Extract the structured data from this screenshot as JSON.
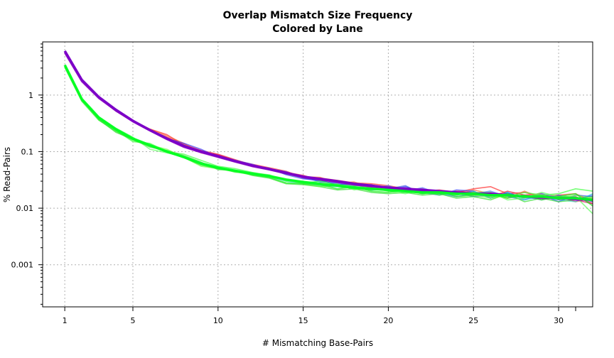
{
  "chart_data": {
    "type": "line",
    "title": "Overlap Mismatch Size Frequency",
    "subtitle": "Colored by Lane",
    "xlabel": "# Mismatching Base-Pairs",
    "ylabel": "% Read-Pairs",
    "x_scale": "linear",
    "y_scale": "log",
    "xlim": [
      -0.3,
      32
    ],
    "ylim": [
      0.00018,
      8.7
    ],
    "x_ticks": [
      1,
      5,
      10,
      15,
      20,
      25,
      30
    ],
    "x_minor_ticks": [
      31
    ],
    "y_ticks": [
      0.001,
      0.01,
      0.1,
      1
    ],
    "y_tick_labels": [
      "0.001",
      "0.01",
      "0.1",
      "1"
    ],
    "y_minor_ticks": [
      0.0002,
      0.0003,
      0.0004,
      0.0005,
      0.0006,
      0.0007,
      0.0008,
      0.0009,
      0.002,
      0.003,
      0.004,
      0.005,
      0.006,
      0.007,
      0.008,
      0.009,
      0.02,
      0.03,
      0.04,
      0.05,
      0.06,
      0.07,
      0.08,
      0.09,
      0.2,
      0.3,
      0.4,
      0.5,
      0.6,
      0.7,
      0.8,
      0.9,
      2,
      3,
      4,
      5,
      6,
      7,
      8
    ],
    "grid": true,
    "legend": "none",
    "x": [
      1,
      2,
      3,
      4,
      5,
      6,
      7,
      8,
      9,
      10,
      11,
      12,
      13,
      14,
      15,
      16,
      17,
      18,
      19,
      20,
      21,
      22,
      23,
      24,
      25,
      26,
      27,
      28,
      29,
      30,
      31,
      32
    ],
    "series": [
      {
        "color": "#7b00c8",
        "width": 3.5,
        "opacity": 1.0,
        "values": [
          6.0,
          1.85,
          0.92,
          0.55,
          0.35,
          0.24,
          0.17,
          0.125,
          0.1,
          0.083,
          0.068,
          0.057,
          0.049,
          0.042,
          0.036,
          0.033,
          0.03,
          0.027,
          0.025,
          0.023,
          0.022,
          0.021,
          0.02,
          0.019,
          0.018,
          0.018,
          0.017,
          0.016,
          0.016,
          0.015,
          0.015,
          0.014
        ]
      },
      {
        "color": "#9a00c0",
        "width": 2.5,
        "opacity": 0.85,
        "values": [
          5.6,
          1.75,
          0.88,
          0.53,
          0.34,
          0.235,
          0.165,
          0.12,
          0.097,
          0.08,
          0.066,
          0.055,
          0.048,
          0.041,
          0.035,
          0.032,
          0.029,
          0.026,
          0.024,
          0.023,
          0.021,
          0.02,
          0.019,
          0.019,
          0.018,
          0.017,
          0.017,
          0.016,
          0.015,
          0.015,
          0.014,
          0.014
        ]
      },
      {
        "color": "#ff3030",
        "width": 1.6,
        "opacity": 0.7,
        "values": [
          5.8,
          1.8,
          0.9,
          0.54,
          0.35,
          0.25,
          0.2,
          0.13,
          0.1,
          0.088,
          0.07,
          0.06,
          0.052,
          0.045,
          0.035,
          0.034,
          0.031,
          0.028,
          0.027,
          0.025,
          0.022,
          0.02,
          0.021,
          0.019,
          0.022,
          0.024,
          0.018,
          0.019,
          0.016,
          0.017,
          0.018,
          0.013
        ]
      },
      {
        "color": "#e8203a",
        "width": 1.6,
        "opacity": 0.7,
        "values": [
          5.9,
          1.82,
          0.91,
          0.55,
          0.36,
          0.24,
          0.18,
          0.135,
          0.105,
          0.09,
          0.072,
          0.058,
          0.05,
          0.043,
          0.038,
          0.031,
          0.029,
          0.027,
          0.024,
          0.024,
          0.021,
          0.022,
          0.018,
          0.02,
          0.019,
          0.016,
          0.02,
          0.017,
          0.018,
          0.014,
          0.016,
          0.012
        ]
      },
      {
        "color": "#ff5a30",
        "width": 1.6,
        "opacity": 0.65,
        "values": [
          5.7,
          1.78,
          0.89,
          0.52,
          0.34,
          0.25,
          0.19,
          0.14,
          0.095,
          0.085,
          0.068,
          0.055,
          0.05,
          0.041,
          0.036,
          0.035,
          0.028,
          0.029,
          0.023,
          0.022,
          0.023,
          0.019,
          0.02,
          0.017,
          0.021,
          0.018,
          0.015,
          0.02,
          0.015,
          0.016,
          0.013,
          0.015
        ]
      },
      {
        "color": "#d01060",
        "width": 1.6,
        "opacity": 0.7,
        "values": [
          5.85,
          1.8,
          0.9,
          0.54,
          0.35,
          0.245,
          0.175,
          0.128,
          0.1,
          0.086,
          0.069,
          0.057,
          0.049,
          0.042,
          0.037,
          0.033,
          0.03,
          0.026,
          0.025,
          0.023,
          0.02,
          0.021,
          0.019,
          0.018,
          0.017,
          0.019,
          0.016,
          0.017,
          0.015,
          0.016,
          0.014,
          0.012
        ]
      },
      {
        "color": "#3030ff",
        "width": 1.6,
        "opacity": 0.65,
        "values": [
          5.75,
          1.79,
          0.89,
          0.54,
          0.35,
          0.24,
          0.17,
          0.14,
          0.11,
          0.08,
          0.066,
          0.058,
          0.05,
          0.044,
          0.034,
          0.03,
          0.027,
          0.025,
          0.026,
          0.021,
          0.024,
          0.019,
          0.017,
          0.021,
          0.02,
          0.015,
          0.019,
          0.015,
          0.017,
          0.013,
          0.017,
          0.016
        ]
      },
      {
        "color": "#4060ff",
        "width": 1.6,
        "opacity": 0.65,
        "values": [
          5.65,
          1.76,
          0.88,
          0.53,
          0.345,
          0.235,
          0.17,
          0.13,
          0.1,
          0.082,
          0.07,
          0.06,
          0.048,
          0.04,
          0.036,
          0.029,
          0.028,
          0.024,
          0.022,
          0.025,
          0.02,
          0.023,
          0.018,
          0.016,
          0.018,
          0.02,
          0.016,
          0.014,
          0.018,
          0.015,
          0.014,
          0.017
        ]
      },
      {
        "color": "#2040e0",
        "width": 1.6,
        "opacity": 0.6,
        "values": [
          5.7,
          1.77,
          0.9,
          0.52,
          0.35,
          0.24,
          0.165,
          0.125,
          0.098,
          0.084,
          0.067,
          0.056,
          0.051,
          0.039,
          0.033,
          0.031,
          0.026,
          0.027,
          0.021,
          0.022,
          0.025,
          0.018,
          0.02,
          0.019,
          0.016,
          0.017,
          0.018,
          0.016,
          0.014,
          0.017,
          0.015,
          0.013
        ]
      },
      {
        "color": "#00c8c8",
        "width": 1.6,
        "opacity": 0.55,
        "values": [
          3.2,
          0.82,
          0.38,
          0.24,
          0.17,
          0.13,
          0.1,
          0.08,
          0.06,
          0.052,
          0.046,
          0.04,
          0.036,
          0.03,
          0.027,
          0.025,
          0.024,
          0.023,
          0.021,
          0.022,
          0.02,
          0.019,
          0.018,
          0.017,
          0.02,
          0.015,
          0.019,
          0.014,
          0.016,
          0.014,
          0.013,
          0.018
        ]
      },
      {
        "color": "#00ff20",
        "width": 3.5,
        "opacity": 0.95,
        "values": [
          3.4,
          0.85,
          0.4,
          0.25,
          0.17,
          0.13,
          0.1,
          0.08,
          0.062,
          0.052,
          0.046,
          0.041,
          0.037,
          0.032,
          0.029,
          0.027,
          0.025,
          0.023,
          0.022,
          0.021,
          0.02,
          0.019,
          0.019,
          0.018,
          0.018,
          0.017,
          0.017,
          0.016,
          0.016,
          0.015,
          0.015,
          0.014
        ]
      },
      {
        "color": "#20f020",
        "width": 1.8,
        "opacity": 0.75,
        "values": [
          3.1,
          0.78,
          0.36,
          0.23,
          0.16,
          0.125,
          0.098,
          0.078,
          0.058,
          0.05,
          0.044,
          0.039,
          0.035,
          0.028,
          0.027,
          0.026,
          0.022,
          0.024,
          0.02,
          0.019,
          0.021,
          0.018,
          0.02,
          0.016,
          0.017,
          0.018,
          0.015,
          0.017,
          0.014,
          0.016,
          0.018,
          0.011
        ]
      },
      {
        "color": "#40ff40",
        "width": 1.6,
        "opacity": 0.7,
        "values": [
          3.3,
          0.8,
          0.39,
          0.24,
          0.15,
          0.14,
          0.1,
          0.09,
          0.07,
          0.055,
          0.05,
          0.043,
          0.038,
          0.031,
          0.028,
          0.03,
          0.026,
          0.025,
          0.023,
          0.02,
          0.022,
          0.02,
          0.017,
          0.019,
          0.018,
          0.016,
          0.016,
          0.019,
          0.017,
          0.018,
          0.022,
          0.02
        ]
      },
      {
        "color": "#30e030",
        "width": 1.6,
        "opacity": 0.7,
        "values": [
          3.25,
          0.83,
          0.37,
          0.22,
          0.165,
          0.12,
          0.105,
          0.085,
          0.065,
          0.048,
          0.047,
          0.038,
          0.034,
          0.027,
          0.026,
          0.024,
          0.021,
          0.022,
          0.019,
          0.018,
          0.019,
          0.017,
          0.018,
          0.015,
          0.016,
          0.014,
          0.018,
          0.013,
          0.015,
          0.013,
          0.014,
          0.016
        ]
      },
      {
        "color": "#50ff50",
        "width": 1.6,
        "opacity": 0.65,
        "values": [
          3.35,
          0.84,
          0.41,
          0.26,
          0.18,
          0.11,
          0.095,
          0.082,
          0.06,
          0.053,
          0.043,
          0.042,
          0.039,
          0.03,
          0.03,
          0.025,
          0.027,
          0.021,
          0.024,
          0.02,
          0.018,
          0.021,
          0.02,
          0.017,
          0.019,
          0.019,
          0.014,
          0.015,
          0.019,
          0.016,
          0.016,
          0.008
        ]
      },
      {
        "color": "#60ff30",
        "width": 1.6,
        "opacity": 0.6,
        "values": [
          3.15,
          0.81,
          0.38,
          0.25,
          0.17,
          0.13,
          0.11,
          0.079,
          0.055,
          0.05,
          0.045,
          0.04,
          0.036,
          0.032,
          0.027,
          0.024,
          0.025,
          0.022,
          0.021,
          0.023,
          0.02,
          0.018,
          0.019,
          0.018,
          0.017,
          0.015,
          0.017,
          0.016,
          0.017,
          0.015,
          0.017,
          0.015
        ]
      }
    ]
  }
}
